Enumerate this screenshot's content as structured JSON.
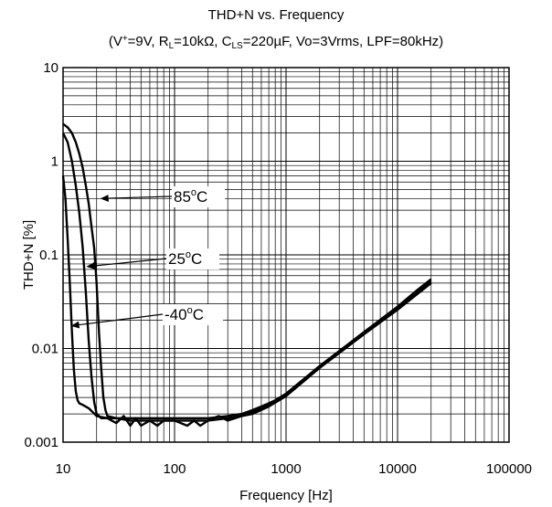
{
  "chart_data": {
    "type": "line",
    "title": "THD+N vs. Frequency",
    "subtitle": {
      "p1": "(V",
      "vsup": "+",
      "p2": "=9V, R",
      "rlsub": "L",
      "p3": "=10kΩ, C",
      "clssub": "LS",
      "p4": "=220µF, Vo=3Vrms, LPF=80kHz)"
    },
    "xlabel": "Frequency [Hz]",
    "ylabel": "THD+N [%]",
    "xscale": "log",
    "yscale": "log",
    "xlim": [
      10,
      100000
    ],
    "ylim": [
      0.001,
      10
    ],
    "x_ticks": [
      "10",
      "100",
      "1000",
      "10000",
      "100000"
    ],
    "y_ticks": [
      "0.001",
      "0.01",
      "0.1",
      "1",
      "10"
    ],
    "grid": true,
    "series": [
      {
        "name": "85°C",
        "x": [
          10,
          11,
          12,
          13,
          14,
          15,
          16,
          17,
          18,
          19,
          20,
          21,
          22,
          23,
          24,
          25,
          30,
          40,
          50,
          70,
          100,
          150,
          200,
          300,
          400,
          500,
          600,
          700,
          800,
          1000,
          2000,
          5000,
          10000,
          15000,
          20000
        ],
        "y": [
          2.5,
          2.3,
          2.0,
          1.6,
          1.2,
          0.85,
          0.55,
          0.35,
          0.2,
          0.12,
          0.05,
          0.015,
          0.006,
          0.003,
          0.0022,
          0.0019,
          0.0018,
          0.0018,
          0.0018,
          0.0018,
          0.0018,
          0.0018,
          0.0018,
          0.0019,
          0.002,
          0.0022,
          0.0024,
          0.0026,
          0.0028,
          0.0033,
          0.0065,
          0.015,
          0.028,
          0.042,
          0.055
        ]
      },
      {
        "name": "25°C",
        "x": [
          10,
          11,
          12,
          13,
          14,
          15,
          16,
          17,
          18,
          19,
          20,
          21,
          22,
          25,
          30,
          40,
          50,
          70,
          100,
          150,
          200,
          300,
          400,
          500,
          600,
          700,
          800,
          1000,
          2000,
          5000,
          10000,
          15000,
          20000
        ],
        "y": [
          2.0,
          1.6,
          1.0,
          0.55,
          0.28,
          0.12,
          0.04,
          0.012,
          0.005,
          0.0027,
          0.002,
          0.0019,
          0.0018,
          0.0018,
          0.0018,
          0.0017,
          0.0017,
          0.0017,
          0.0017,
          0.0017,
          0.0017,
          0.0018,
          0.0019,
          0.0021,
          0.0023,
          0.0025,
          0.0027,
          0.0032,
          0.0063,
          0.0145,
          0.027,
          0.04,
          0.052
        ]
      },
      {
        "name": "-40°C",
        "x": [
          10,
          10.5,
          11,
          11.5,
          12,
          12.5,
          13,
          13.5,
          14,
          15,
          17,
          20,
          25,
          30,
          35,
          40,
          45,
          50,
          60,
          70,
          80,
          100,
          130,
          150,
          170,
          200,
          250,
          300,
          400,
          500,
          700,
          1000,
          2000,
          5000,
          10000,
          20000
        ],
        "y": [
          0.7,
          0.4,
          0.15,
          0.05,
          0.015,
          0.006,
          0.0035,
          0.0028,
          0.0026,
          0.0025,
          0.0023,
          0.0019,
          0.0018,
          0.0016,
          0.0019,
          0.0015,
          0.0018,
          0.0015,
          0.0017,
          0.0015,
          0.0017,
          0.0017,
          0.0015,
          0.0017,
          0.0015,
          0.0017,
          0.0019,
          0.0017,
          0.0019,
          0.002,
          0.0024,
          0.0031,
          0.0062,
          0.0142,
          0.026,
          0.05
        ]
      }
    ],
    "annotations": [
      {
        "label": "85",
        "sup": "o",
        "unit": "C",
        "series": "85°C",
        "arrow_to": [
          22,
          0.4
        ]
      },
      {
        "label": "25",
        "sup": "o",
        "unit": "C",
        "series": "25°C",
        "arrow_to": [
          16.5,
          0.075
        ]
      },
      {
        "label": "-40",
        "sup": "o",
        "unit": "C",
        "series": "-40°C",
        "arrow_to": [
          12,
          0.0175
        ]
      }
    ]
  }
}
